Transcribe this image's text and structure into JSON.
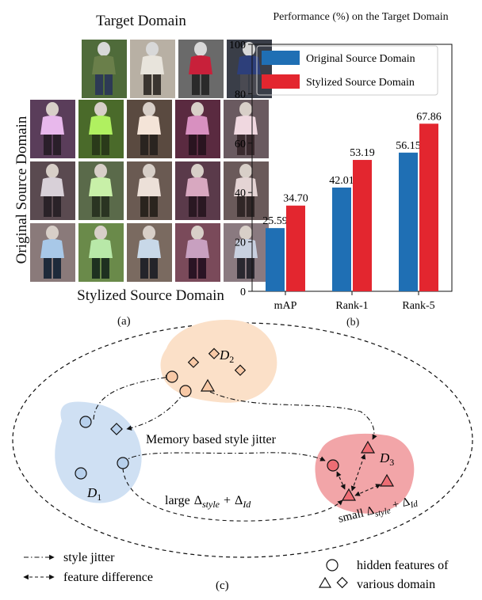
{
  "panel_a": {
    "target_label": "Target Domain",
    "original_label": "Original Source Domain",
    "stylized_label": "Stylized Source Domain",
    "caption": "(a)",
    "target_row": [
      {
        "bg": "#4f6b3a",
        "shirt": "#6a7f4a",
        "pants": "#2d3a55",
        "head": "#d8d8d8"
      },
      {
        "bg": "#b8b0a4",
        "shirt": "#e8e4dc",
        "pants": "#3a3530",
        "head": "#d8d8d8"
      },
      {
        "bg": "#6a6a6a",
        "shirt": "#c8203a",
        "pants": "#2a2a2a",
        "head": "#d8d8d8"
      },
      {
        "bg": "#3a3e48",
        "shirt": "#2d3f7a",
        "pants": "#4a4a52",
        "head": "#d8d8d8"
      }
    ],
    "grid_rows": [
      [
        {
          "bg": "#5a3d5a",
          "shirt": "#e8b8ec",
          "pants": "#2a1f2a"
        },
        {
          "bg": "#4a6a2a",
          "shirt": "#b0f060",
          "pants": "#2a3a1a"
        },
        {
          "bg": "#5a4a40",
          "shirt": "#f4e4d8",
          "pants": "#2a2420"
        },
        {
          "bg": "#5a2a40",
          "shirt": "#d890c0",
          "pants": "#2a1420"
        },
        {
          "bg": "#6a5a60",
          "shirt": "#f0d8e0",
          "pants": "#3a2a2e"
        }
      ],
      [
        {
          "bg": "#5a4a50",
          "shirt": "#d8d0d8",
          "pants": "#2a2228"
        },
        {
          "bg": "#5a6a4a",
          "shirt": "#c8f0a8",
          "pants": "#2a3422"
        },
        {
          "bg": "#6a5a52",
          "shirt": "#ece0d8",
          "pants": "#2a241e"
        },
        {
          "bg": "#5a3a4a",
          "shirt": "#d8a8c0",
          "pants": "#2a1822"
        },
        {
          "bg": "#6a5a5a",
          "shirt": "#e4d4d4",
          "pants": "#302626"
        }
      ],
      [
        {
          "bg": "#8a7a7a",
          "shirt": "#a8c8e8",
          "pants": "#1e2a3a"
        },
        {
          "bg": "#6a8a4a",
          "shirt": "#b8e8a8",
          "pants": "#1e3020"
        },
        {
          "bg": "#7a6a60",
          "shirt": "#c8d8e8",
          "pants": "#24242a"
        },
        {
          "bg": "#7a4a5a",
          "shirt": "#c8a0c0",
          "pants": "#2a1424"
        },
        {
          "bg": "#8a7a80",
          "shirt": "#c8d0e0",
          "pants": "#2a2830"
        }
      ]
    ]
  },
  "panel_b": {
    "caption": "(b)",
    "chart_data": {
      "type": "bar",
      "title": "Performance (%) on the Target Domain",
      "categories": [
        "mAP",
        "Rank-1",
        "Rank-5"
      ],
      "series": [
        {
          "name": "Original Source Domain",
          "color": "#1f6fb4",
          "values": [
            25.59,
            42.01,
            56.15
          ],
          "labels": [
            "25.59",
            "42.01",
            "56.15"
          ]
        },
        {
          "name": "Stylized Source Domain",
          "color": "#e3262f",
          "values": [
            34.7,
            53.19,
            67.86
          ],
          "labels": [
            "34.70",
            "53.19",
            "67.86"
          ]
        }
      ],
      "ylim": [
        0,
        100
      ],
      "yticks": [
        "0",
        "20",
        "40",
        "60",
        "80",
        "100"
      ],
      "legend": "top-left",
      "grid": false
    }
  },
  "panel_c": {
    "caption": "(c)",
    "d1": {
      "base": "D",
      "sub": "1"
    },
    "d2": {
      "base": "D",
      "sub": "2"
    },
    "d3": {
      "base": "D",
      "sub": "3"
    },
    "memory_label": "Memory based style jitter",
    "large_label": "large",
    "small_label": "small",
    "delta": "Δ",
    "style_sub": "style",
    "id_sub": "Id",
    "plus": "+",
    "legend_jitter": "style jitter",
    "legend_feature": "feature difference",
    "legend_hidden_1": "hidden features of",
    "legend_hidden_2": "various domain",
    "colors": {
      "d1": "#cfe0f3",
      "d2": "#fbe0c8",
      "d3": "#f2a5a8",
      "d1_marker": "#b7d0ec",
      "d2_marker": "#f8c9a6",
      "d3_marker": "#ee6d74"
    }
  }
}
